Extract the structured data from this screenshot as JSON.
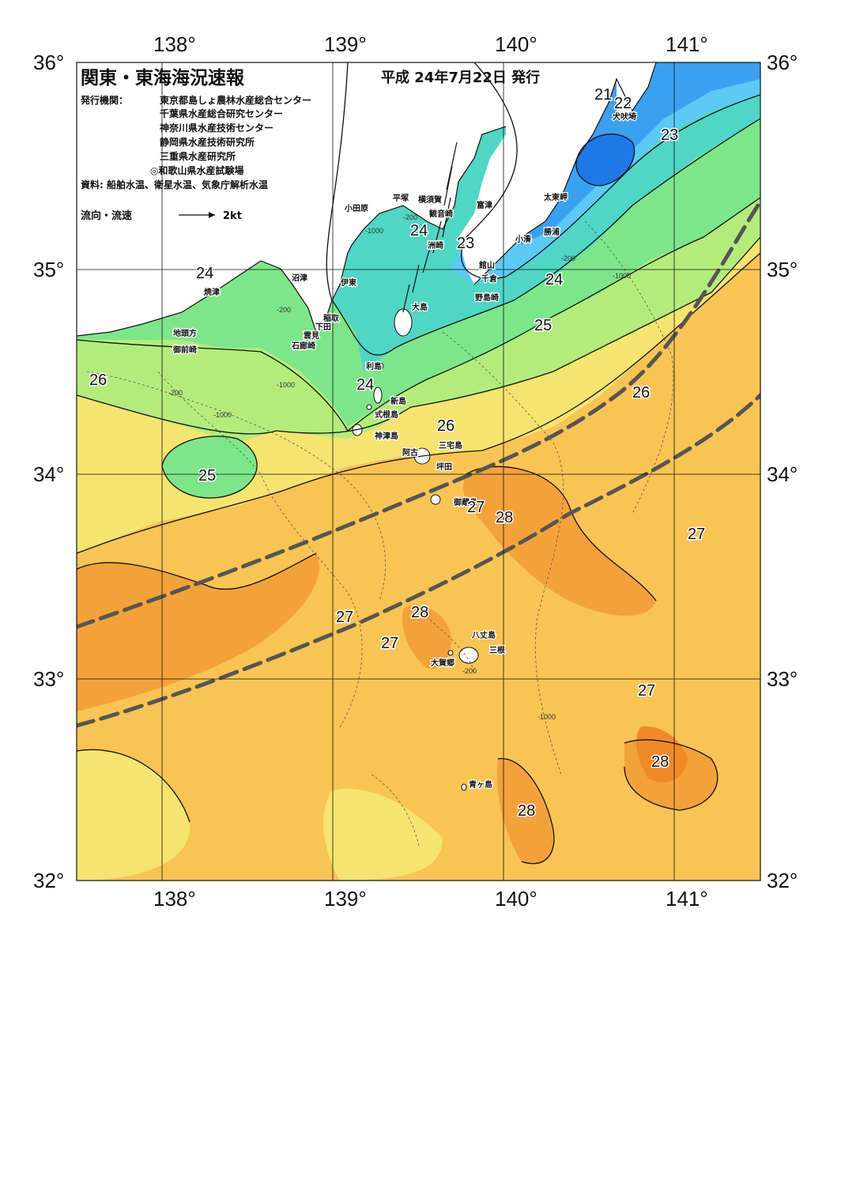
{
  "title": "関東・東海海況速報",
  "issue_date": "平成 24年7月22日 発行",
  "publisher_label": "発行機関：",
  "publishers": [
    "東京都島しょ農林水産総合センター",
    "千葉県水産総合研究センター",
    "神奈川県水産技術センター",
    "静岡県水産技術研究所",
    "三重県水産研究所",
    "◎和歌山県水産試験場"
  ],
  "sources": "資料: 船舶水温、衛星水温、気象庁解析水温",
  "legend": {
    "label": "流向・流速",
    "speed": "2kt"
  },
  "axes": {
    "lon": [
      "138°",
      "139°",
      "140°",
      "141°"
    ],
    "lat": [
      "36°",
      "35°",
      "34°",
      "33°",
      "32°"
    ]
  },
  "colors": {
    "t20": "#1e78e6",
    "t21": "#3aa0f0",
    "t22": "#5ccaf4",
    "t23": "#4fd6c4",
    "t24": "#7de68a",
    "t25": "#b4ec7c",
    "t26": "#f6e470",
    "t27": "#f8c453",
    "t28": "#f3a23a",
    "t29": "#ef8a26",
    "land": "#ffffff",
    "kuroshio": "#555555"
  },
  "places": [
    "小田原",
    "平塚",
    "横須賀",
    "観音崎",
    "富津",
    "洲崎",
    "館山",
    "千倉",
    "野島崎",
    "小湊",
    "勝浦",
    "太東岬",
    "犬吠埼",
    "沼津",
    "伊東",
    "焼津",
    "稲取",
    "下田",
    "雲見",
    "石廊崎",
    "地頭方",
    "御前崎",
    "大島",
    "利島",
    "新島",
    "式根島",
    "神津島",
    "三宅島",
    "阿古",
    "坪田",
    "御蔵島",
    "八丈島",
    "三根",
    "大賀郷",
    "青ヶ島"
  ],
  "temperature_labels": [
    "21",
    "22",
    "23",
    "24",
    "23",
    "24",
    "24",
    "25",
    "24",
    "26",
    "26",
    "26",
    "25",
    "27",
    "28",
    "27",
    "27",
    "27",
    "28",
    "27",
    "28",
    "28"
  ],
  "depth_labels": [
    "-200",
    "-1000",
    "-200",
    "-1000",
    "-200",
    "-1000",
    "-200",
    "-1000",
    "-200",
    "-1000"
  ]
}
